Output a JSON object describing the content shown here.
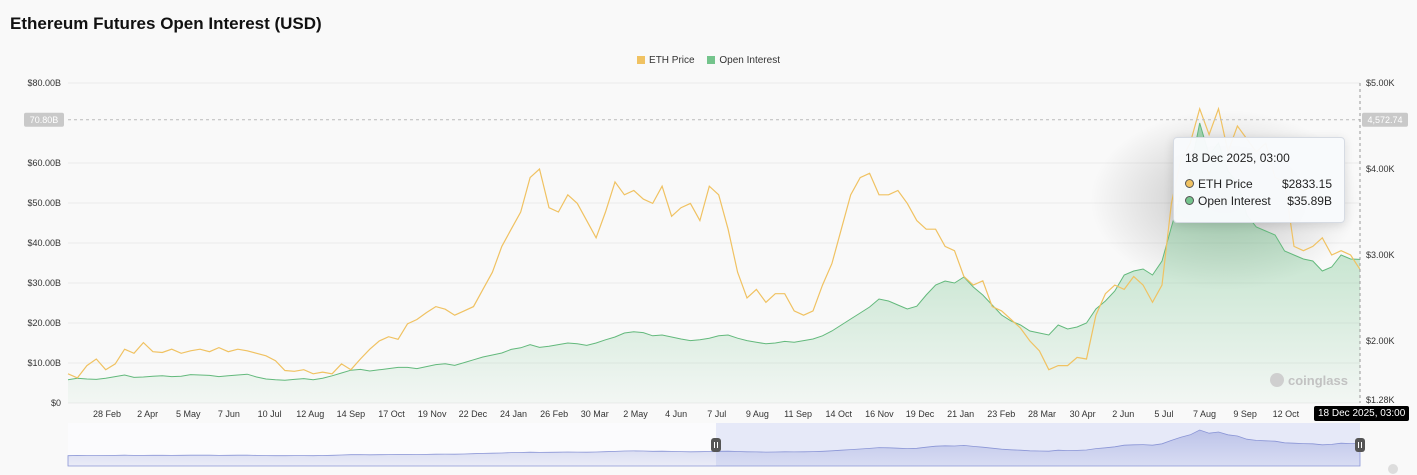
{
  "title": "Ethereum Futures Open Interest (USD)",
  "colors": {
    "eth_price": "#f0c262",
    "open_interest": "#74c48c",
    "navigator": "#8a95d6"
  },
  "tooltip": {
    "date": "18 Dec 2025, 03:00",
    "eth_label": "ETH Price",
    "eth_value": "$2833.15",
    "oi_label": "Open Interest",
    "oi_value": "$35.89B"
  },
  "crosshair": {
    "left_label": "70.80B",
    "right_label": "4,572.74",
    "left_value": 70.8
  },
  "date_badge": "18 Dec 2025, 03:00",
  "logo_text": "coinglass",
  "icons": {
    "logo": "coinglass-logo-icon",
    "navigator_handle": "grip-handle-icon",
    "resize": "resize-corner-icon"
  },
  "chart_data": {
    "type": "area",
    "left_axis": {
      "ticks": [
        "$0",
        "$10.00B",
        "$20.00B",
        "$30.00B",
        "$40.00B",
        "$50.00B",
        "$60.00B",
        "$80.00B"
      ],
      "tick_values": [
        0,
        10,
        20,
        30,
        40,
        50,
        60,
        80
      ],
      "range": [
        0,
        80
      ]
    },
    "right_axis": {
      "ticks": [
        "$1.28K",
        "$2.00K",
        "$3.00K",
        "$4.00K",
        "$5.00K"
      ],
      "tick_values": [
        1280,
        2000,
        3000,
        4000,
        5000
      ]
    },
    "x_ticks": [
      "28 Feb",
      "2 Apr",
      "5 May",
      "7 Jun",
      "10 Jul",
      "12 Aug",
      "14 Sep",
      "17 Oct",
      "19 Nov",
      "22 Dec",
      "24 Jan",
      "26 Feb",
      "30 Mar",
      "2 May",
      "4 Jun",
      "7 Jul",
      "9 Aug",
      "11 Sep",
      "14 Oct",
      "16 Nov",
      "19 Dec",
      "21 Jan",
      "23 Feb",
      "28 Mar",
      "30 Apr",
      "2 Jun",
      "5 Jul",
      "7 Aug",
      "9 Sep",
      "12 Oct",
      "14"
    ],
    "series": [
      {
        "name": "ETH Price",
        "axis": "right",
        "values": [
          1600,
          1550,
          1700,
          1780,
          1650,
          1720,
          1900,
          1850,
          1980,
          1870,
          1860,
          1900,
          1850,
          1880,
          1900,
          1870,
          1920,
          1870,
          1900,
          1880,
          1850,
          1820,
          1760,
          1640,
          1630,
          1650,
          1600,
          1620,
          1600,
          1720,
          1650,
          1780,
          1900,
          2000,
          2050,
          2020,
          2200,
          2250,
          2330,
          2400,
          2370,
          2300,
          2350,
          2400,
          2600,
          2800,
          3100,
          3300,
          3500,
          3900,
          4000,
          3550,
          3500,
          3700,
          3600,
          3400,
          3200,
          3500,
          3850,
          3700,
          3750,
          3650,
          3600,
          3800,
          3450,
          3550,
          3600,
          3400,
          3800,
          3700,
          3300,
          2800,
          2500,
          2600,
          2450,
          2550,
          2550,
          2350,
          2300,
          2350,
          2650,
          2900,
          3300,
          3700,
          3900,
          3950,
          3700,
          3700,
          3750,
          3600,
          3400,
          3300,
          3300,
          3100,
          3050,
          2750,
          2650,
          2700,
          2400,
          2350,
          2250,
          2150,
          2000,
          1880,
          1650,
          1700,
          1700,
          1800,
          1780,
          2300,
          2550,
          2650,
          2600,
          2750,
          2650,
          2450,
          2650,
          3600,
          4100,
          4300,
          4700,
          4400,
          4700,
          4200,
          4500,
          4350,
          4200,
          4300,
          3900,
          3850,
          3100,
          3050,
          3100,
          3200,
          3000,
          3050,
          3000,
          2833
        ],
        "color": "#f0c262"
      },
      {
        "name": "Open Interest",
        "axis": "left",
        "values": [
          5.8,
          6.2,
          6.0,
          5.9,
          6.2,
          6.6,
          7.0,
          6.4,
          6.5,
          6.7,
          6.8,
          6.6,
          6.7,
          7.1,
          7.0,
          6.9,
          6.6,
          6.8,
          7.0,
          7.2,
          6.5,
          6.0,
          5.8,
          5.7,
          5.9,
          6.1,
          5.8,
          6.2,
          6.8,
          7.5,
          8.2,
          8.4,
          8.0,
          8.3,
          8.6,
          8.9,
          8.9,
          8.6,
          9.1,
          9.6,
          9.8,
          9.4,
          10.1,
          10.8,
          11.5,
          12.0,
          12.5,
          13.4,
          13.8,
          14.6,
          13.9,
          14.2,
          14.6,
          15.0,
          14.8,
          14.4,
          15.0,
          15.8,
          16.5,
          17.5,
          17.8,
          17.6,
          16.8,
          17.0,
          16.5,
          16.0,
          15.6,
          15.8,
          16.2,
          16.8,
          17.0,
          16.2,
          15.6,
          15.2,
          14.8,
          15.0,
          15.4,
          15.2,
          15.6,
          16.0,
          16.8,
          18.0,
          19.5,
          21.0,
          22.5,
          24.0,
          26.0,
          25.5,
          24.5,
          23.5,
          24.2,
          27.0,
          29.5,
          30.5,
          30.0,
          31.5,
          29.0,
          27.0,
          24.5,
          22.0,
          20.5,
          19.5,
          18.0,
          17.5,
          17.0,
          19.5,
          18.5,
          19.0,
          20.0,
          23.5,
          25.5,
          28.0,
          32.0,
          33.0,
          33.5,
          32.0,
          35.5,
          44.0,
          52.0,
          58.0,
          70.0,
          62.0,
          65.0,
          58.0,
          55.0,
          47.0,
          44.0,
          43.0,
          42.0,
          38.0,
          37.0,
          36.0,
          35.5,
          33.0,
          34.0,
          37.0,
          36.0,
          35.89
        ],
        "color": "#74c48c"
      }
    ],
    "navigator": {
      "selected_range": "7 Jul – 18 Dec 2025"
    },
    "legend_position": "top-center",
    "grid": true
  }
}
